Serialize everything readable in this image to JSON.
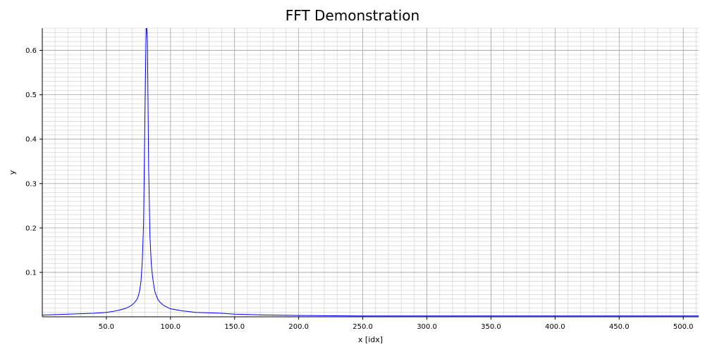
{
  "chart_data": {
    "type": "line",
    "title": "FFT Demonstration",
    "xlabel": "x [idx]",
    "ylabel": "y",
    "xlim": [
      0,
      512
    ],
    "ylim": [
      0,
      0.65
    ],
    "x_ticks": [
      50,
      100,
      150,
      200,
      250,
      300,
      350,
      400,
      450,
      500
    ],
    "x_tick_labels": [
      "50.0",
      "100.0",
      "150.0",
      "200.0",
      "250.0",
      "300.0",
      "350.0",
      "400.0",
      "450.0",
      "500.0"
    ],
    "y_ticks": [
      0.1,
      0.2,
      0.3,
      0.4,
      0.5,
      0.6
    ],
    "y_tick_labels": [
      "0.1",
      "0.2",
      "0.3",
      "0.4",
      "0.5",
      "0.6"
    ],
    "grid": true,
    "line_color": "#0000ff",
    "series": [
      {
        "x": [
          0,
          10,
          20,
          30,
          40,
          50,
          55,
          60,
          65,
          68,
          70,
          72,
          74,
          75,
          76,
          77,
          78,
          79,
          80,
          81,
          81.5,
          82,
          83,
          84,
          85,
          86,
          87,
          88,
          90,
          92,
          95,
          100,
          110,
          120,
          130,
          140,
          150,
          175,
          200,
          250,
          300,
          350,
          400,
          450,
          500,
          512
        ],
        "y": [
          0.004,
          0.005,
          0.006,
          0.007,
          0.008,
          0.01,
          0.012,
          0.015,
          0.019,
          0.023,
          0.027,
          0.032,
          0.04,
          0.048,
          0.06,
          0.08,
          0.125,
          0.21,
          0.44,
          0.65,
          0.65,
          0.62,
          0.33,
          0.18,
          0.12,
          0.09,
          0.07,
          0.055,
          0.04,
          0.032,
          0.025,
          0.018,
          0.013,
          0.01,
          0.009,
          0.008,
          0.006,
          0.004,
          0.003,
          0.002,
          0.002,
          0.002,
          0.002,
          0.002,
          0.002,
          0.002
        ]
      }
    ]
  }
}
